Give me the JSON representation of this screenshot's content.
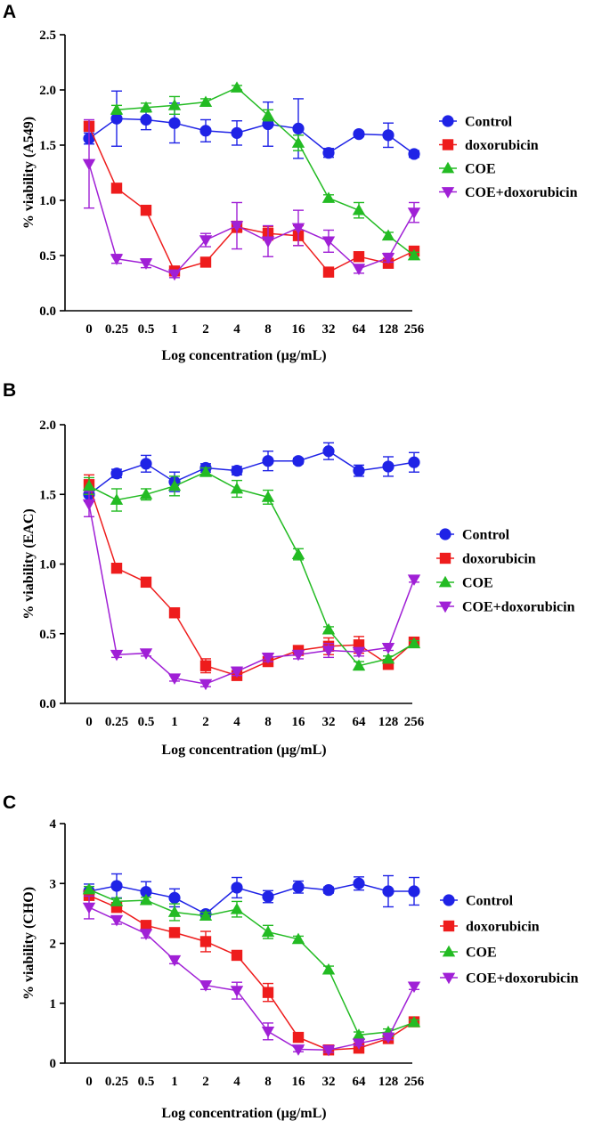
{
  "chart_data": [
    {
      "panel_label": "A",
      "type": "line",
      "ylabel": "% viability (A549)",
      "xlabel": "Log concentration (µg/mL)",
      "categories": [
        "0",
        "0.25",
        "0.5",
        "1",
        "2",
        "4",
        "8",
        "16",
        "32",
        "64",
        "128",
        "256"
      ],
      "ylim": [
        0,
        2.5
      ],
      "yticks": [
        "0.0",
        "0.5",
        "1.0",
        "1.5",
        "2.0",
        "2.5"
      ],
      "legend_position": "right",
      "series": [
        {
          "name": "Control",
          "color": "#1f23e6",
          "marker": "circle",
          "values": [
            1.56,
            1.74,
            1.73,
            1.7,
            1.63,
            1.61,
            1.69,
            1.65,
            1.43,
            1.6,
            1.59,
            1.42
          ],
          "errors": [
            0.05,
            0.25,
            0.09,
            0.18,
            0.1,
            0.11,
            0.2,
            0.27,
            0.04,
            0.02,
            0.11,
            0.03
          ]
        },
        {
          "name": "doxorubicin",
          "color": "#ee1c1c",
          "marker": "square",
          "values": [
            1.67,
            1.11,
            0.91,
            0.36,
            0.44,
            0.76,
            0.7,
            0.68,
            0.35,
            0.49,
            0.43,
            0.54
          ],
          "errors": [
            0.02,
            0.03,
            0.03,
            0.03,
            0.03,
            0.05,
            0.06,
            0.09,
            0.02,
            0.03,
            0.03,
            0.03
          ]
        },
        {
          "name": "COE",
          "color": "#23bb23",
          "marker": "triangle-up",
          "values": [
            null,
            1.82,
            1.84,
            1.86,
            1.89,
            2.02,
            1.77,
            1.52,
            1.02,
            0.91,
            0.68,
            0.5
          ],
          "errors": [
            null,
            0.04,
            0.04,
            0.08,
            0.03,
            0.02,
            0.05,
            0.07,
            0.03,
            0.07,
            0.03,
            0.03
          ]
        },
        {
          "name": "COE+doxorubicin",
          "color": "#a020d6",
          "marker": "triangle-down",
          "values": [
            1.33,
            0.47,
            0.43,
            0.33,
            0.64,
            0.77,
            0.63,
            0.75,
            0.63,
            0.38,
            0.48,
            0.89
          ],
          "errors": [
            0.4,
            0.04,
            0.04,
            0.03,
            0.06,
            0.21,
            0.14,
            0.16,
            0.1,
            0.04,
            0.04,
            0.09
          ]
        }
      ]
    },
    {
      "panel_label": "B",
      "type": "line",
      "ylabel": "% viability (EAC)",
      "xlabel": "Log concentration (µg/mL)",
      "categories": [
        "0",
        "0.25",
        "0.5",
        "1",
        "2",
        "4",
        "8",
        "16",
        "32",
        "64",
        "128",
        "256"
      ],
      "ylim": [
        0,
        2.0
      ],
      "yticks": [
        "0.0",
        "0.5",
        "1.0",
        "1.5",
        "2.0"
      ],
      "legend_position": "right",
      "series": [
        {
          "name": "Control",
          "color": "#1f23e6",
          "marker": "circle",
          "values": [
            1.5,
            1.65,
            1.72,
            1.59,
            1.69,
            1.67,
            1.74,
            1.74,
            1.81,
            1.67,
            1.7,
            1.73
          ],
          "errors": [
            0.05,
            0.03,
            0.06,
            0.07,
            0.03,
            0.03,
            0.07,
            0.02,
            0.06,
            0.04,
            0.07,
            0.07
          ]
        },
        {
          "name": "doxorubicin",
          "color": "#ee1c1c",
          "marker": "square",
          "values": [
            1.57,
            0.97,
            0.87,
            0.65,
            0.27,
            0.2,
            0.3,
            0.38,
            0.41,
            0.42,
            0.28,
            0.44
          ],
          "errors": [
            0.07,
            0.02,
            0.02,
            0.02,
            0.05,
            0.03,
            0.03,
            0.03,
            0.06,
            0.06,
            0.03,
            0.02
          ]
        },
        {
          "name": "COE",
          "color": "#23bb23",
          "marker": "triangle-up",
          "values": [
            1.56,
            1.46,
            1.5,
            1.56,
            1.66,
            1.54,
            1.48,
            1.07,
            0.53,
            0.27,
            0.32,
            0.43
          ],
          "errors": [
            0.06,
            0.08,
            0.04,
            0.07,
            0.03,
            0.06,
            0.05,
            0.04,
            0.02,
            0.03,
            0.02,
            0.02
          ]
        },
        {
          "name": "COE+doxorubicin",
          "color": "#a020d6",
          "marker": "triangle-down",
          "values": [
            1.43,
            0.35,
            0.36,
            0.18,
            0.14,
            0.23,
            0.33,
            0.35,
            0.38,
            0.37,
            0.4,
            0.89
          ],
          "errors": [
            0.09,
            0.02,
            0.02,
            0.02,
            0.02,
            0.03,
            0.03,
            0.03,
            0.05,
            0.03,
            0.02,
            0.02
          ]
        }
      ]
    },
    {
      "panel_label": "C",
      "type": "line",
      "ylabel": "% viability (CHO)",
      "xlabel": "Log concentration (µg/mL)",
      "categories": [
        "0",
        "0.25",
        "0.5",
        "1",
        "2",
        "4",
        "8",
        "16",
        "32",
        "64",
        "128",
        "256"
      ],
      "ylim": [
        0,
        4
      ],
      "yticks": [
        "0",
        "1",
        "2",
        "3",
        "4"
      ],
      "legend_position": "right",
      "series": [
        {
          "name": "Control",
          "color": "#1f23e6",
          "marker": "circle",
          "values": [
            2.87,
            2.96,
            2.86,
            2.76,
            2.49,
            2.93,
            2.78,
            2.94,
            2.89,
            3.0,
            2.87,
            2.87
          ],
          "errors": [
            0.12,
            0.2,
            0.17,
            0.15,
            0.05,
            0.17,
            0.1,
            0.1,
            0.05,
            0.11,
            0.26,
            0.23
          ]
        },
        {
          "name": "doxorubicin",
          "color": "#ee1c1c",
          "marker": "square",
          "values": [
            2.8,
            2.6,
            2.3,
            2.18,
            2.03,
            1.8,
            1.18,
            0.43,
            0.22,
            0.25,
            0.41,
            0.69
          ],
          "errors": [
            0.05,
            0.06,
            0.05,
            0.04,
            0.17,
            0.04,
            0.15,
            0.05,
            0.04,
            0.04,
            0.04,
            0.03
          ]
        },
        {
          "name": "COE",
          "color": "#23bb23",
          "marker": "triangle-up",
          "values": [
            2.9,
            2.7,
            2.72,
            2.52,
            2.46,
            2.57,
            2.19,
            2.07,
            1.56,
            0.47,
            0.52,
            0.68
          ],
          "errors": [
            0.05,
            0.05,
            0.05,
            0.14,
            0.06,
            0.13,
            0.11,
            0.05,
            0.06,
            0.05,
            0.05,
            0.04
          ]
        },
        {
          "name": "COE+doxorubicin",
          "color": "#a020d6",
          "marker": "triangle-down",
          "values": [
            2.6,
            2.39,
            2.16,
            1.72,
            1.3,
            1.21,
            0.53,
            0.23,
            0.22,
            0.33,
            0.43,
            1.28
          ],
          "errors": [
            0.19,
            0.07,
            0.07,
            0.06,
            0.07,
            0.14,
            0.14,
            0.04,
            0.04,
            0.04,
            0.04,
            0.05
          ]
        }
      ]
    }
  ]
}
